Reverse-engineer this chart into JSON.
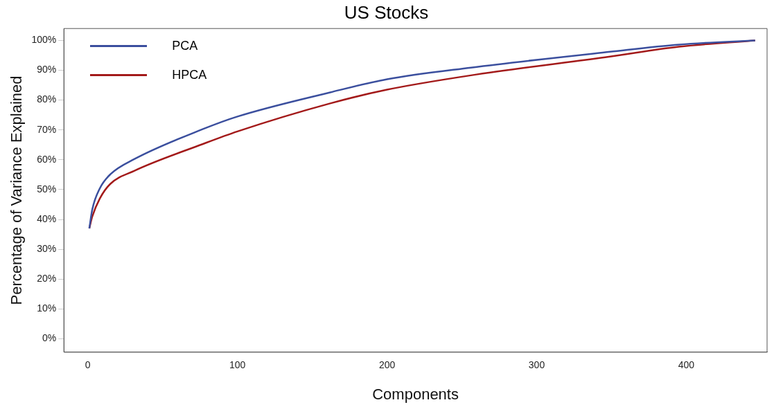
{
  "chart_data": {
    "type": "line",
    "title": "US Stocks",
    "xlabel": "Components",
    "ylabel": "Percentage of Variance Explained",
    "xlim": [
      -16,
      454
    ],
    "xticks": [
      0,
      100,
      200,
      300,
      400
    ],
    "ylim": [
      -4.5,
      104
    ],
    "yticks": [
      {
        "value": 0,
        "label": "0%"
      },
      {
        "value": 10,
        "label": "10%"
      },
      {
        "value": 20,
        "label": "20%"
      },
      {
        "value": 30,
        "label": "30%"
      },
      {
        "value": 40,
        "label": "40%"
      },
      {
        "value": 50,
        "label": "50%"
      },
      {
        "value": 60,
        "label": "60%"
      },
      {
        "value": 70,
        "label": "70%"
      },
      {
        "value": 80,
        "label": "80%"
      },
      {
        "value": 90,
        "label": "90%"
      },
      {
        "value": 100,
        "label": "100%"
      }
    ],
    "grid": false,
    "legend": "top left",
    "marker": "none",
    "line_style": "solid",
    "series": [
      {
        "name": "PCA",
        "color": "#3b4f9e",
        "x": [
          1,
          3,
          8,
          15,
          31,
          77,
          100,
          162,
          200,
          256,
          349,
          395,
          446
        ],
        "values": [
          37,
          43.4,
          50.4,
          55.1,
          60.2,
          70.3,
          74.5,
          82.6,
          87,
          90.9,
          96.2,
          98.6,
          100
        ]
      },
      {
        "name": "HPCA",
        "color": "#a31a1a",
        "x": [
          1,
          3,
          8,
          15,
          31,
          77,
          100,
          162,
          200,
          256,
          349,
          395,
          446
        ],
        "values": [
          37,
          41,
          47,
          51.9,
          56.3,
          65.3,
          69.5,
          78.9,
          83.5,
          88.3,
          94.6,
          97.9,
          100
        ]
      }
    ]
  }
}
